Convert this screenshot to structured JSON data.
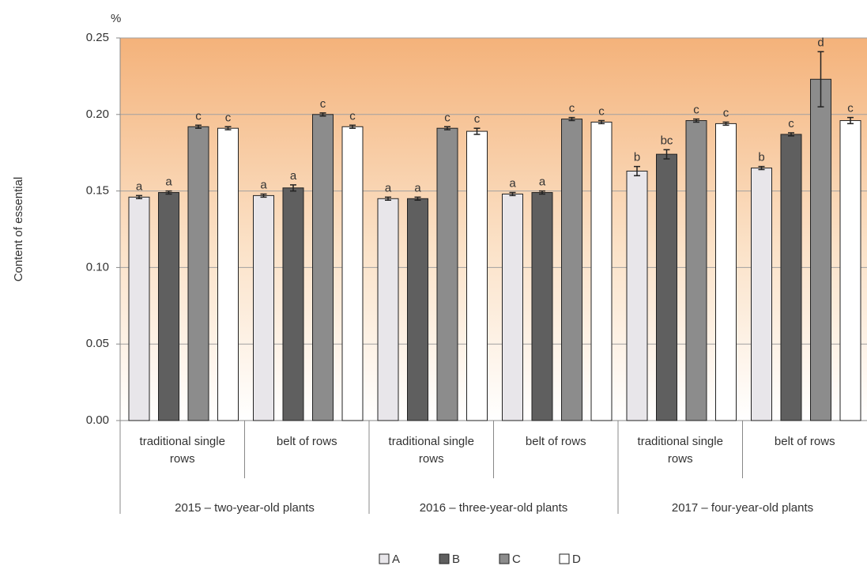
{
  "chart_data": {
    "type": "bar",
    "y_label": "Content of essential",
    "y_unit": "%",
    "categories": [
      "traditional single rows",
      "belt of rows",
      "traditional single rows",
      "belt of rows",
      "traditional single rows",
      "belt of rows"
    ],
    "groups": [
      "2015 – two-year-old plants",
      "2016 – three-year-old plants",
      "2017 – four-year-old plants"
    ],
    "series": [
      {
        "name": "A",
        "color": "#e8e6ea",
        "values": [
          0.146,
          0.147,
          0.145,
          0.148,
          0.163,
          0.165
        ],
        "errors": [
          0.001,
          0.001,
          0.001,
          0.001,
          0.003,
          0.001
        ],
        "letters": [
          "a",
          "a",
          "a",
          "a",
          "b",
          "b"
        ]
      },
      {
        "name": "B",
        "color": "#5f5f5f",
        "values": [
          0.149,
          0.152,
          0.145,
          0.149,
          0.174,
          0.187
        ],
        "errors": [
          0.001,
          0.002,
          0.001,
          0.001,
          0.003,
          0.001
        ],
        "letters": [
          "a",
          "a",
          "a",
          "a",
          "bc",
          "c"
        ]
      },
      {
        "name": "C",
        "color": "#8c8c8c",
        "values": [
          0.192,
          0.2,
          0.191,
          0.197,
          0.196,
          0.223
        ],
        "errors": [
          0.001,
          0.001,
          0.001,
          0.001,
          0.001,
          0.018
        ],
        "letters": [
          "c",
          "c",
          "c",
          "c",
          "c",
          "d"
        ]
      },
      {
        "name": "D",
        "color": "#ffffff",
        "values": [
          0.191,
          0.192,
          0.189,
          0.195,
          0.194,
          0.196
        ],
        "errors": [
          0.001,
          0.001,
          0.002,
          0.001,
          0.001,
          0.002
        ],
        "letters": [
          "c",
          "c",
          "c",
          "c",
          "c",
          "c"
        ]
      }
    ],
    "ylim": [
      0,
      0.25
    ],
    "yticks": [
      {
        "value": 0,
        "label": "0.00"
      },
      0.05,
      {
        "value": 0.1,
        "label": "0.10"
      },
      0.15,
      {
        "value": 0.2,
        "label": "0.20"
      },
      0.25
    ],
    "grid": true
  }
}
